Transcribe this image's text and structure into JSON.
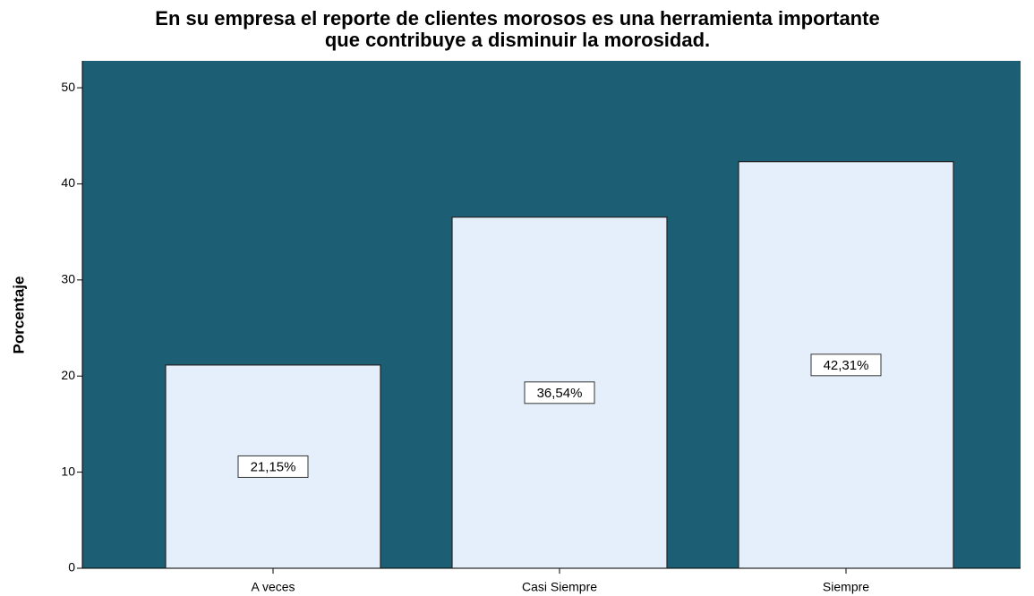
{
  "chart_data": {
    "type": "bar",
    "title": [
      "En su empresa el reporte de clientes morosos es una herramienta importante",
      "que contribuye a disminuir la morosidad."
    ],
    "y_label": "Porcentaje",
    "categories": [
      "A veces",
      "Casi Siempre",
      "Siempre"
    ],
    "values": [
      21.15,
      36.54,
      42.31
    ],
    "value_labels": [
      "21,15%",
      "36,54%",
      "42,31%"
    ],
    "color": "#e4effb",
    "background": "#1c5e74",
    "ylim": [
      0,
      52.8
    ],
    "yticks": [
      0,
      10,
      20,
      30,
      40,
      50
    ],
    "grid": false
  }
}
